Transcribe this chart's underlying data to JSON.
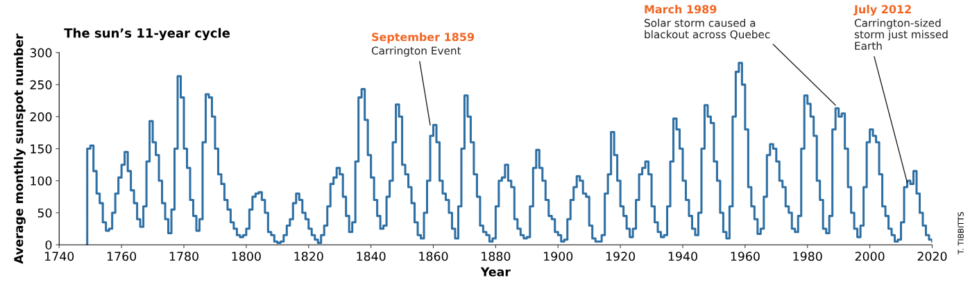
{
  "chart_data": {
    "type": "step",
    "title": "The sun’s 11-year cycle",
    "xlabel": "Year",
    "ylabel": "Average monthly sunspot number",
    "x": [
      1748.9,
      1749,
      1750,
      1751,
      1752,
      1753,
      1754,
      1755,
      1756,
      1757,
      1758,
      1759,
      1760,
      1761,
      1762,
      1763,
      1764,
      1765,
      1766,
      1767,
      1768,
      1769,
      1770,
      1771,
      1772,
      1773,
      1774,
      1775,
      1776,
      1777,
      1778,
      1779,
      1780,
      1781,
      1782,
      1783,
      1784,
      1785,
      1786,
      1787,
      1788,
      1789,
      1790,
      1791,
      1792,
      1793,
      1794,
      1795,
      1796,
      1797,
      1798,
      1799,
      1800,
      1801,
      1802,
      1803,
      1804,
      1805,
      1806,
      1807,
      1808,
      1809,
      1810,
      1811,
      1812,
      1813,
      1814,
      1815,
      1816,
      1817,
      1818,
      1819,
      1820,
      1821,
      1822,
      1823,
      1824,
      1825,
      1826,
      1827,
      1828,
      1829,
      1830,
      1831,
      1832,
      1833,
      1834,
      1835,
      1836,
      1837,
      1838,
      1839,
      1840,
      1841,
      1842,
      1843,
      1844,
      1845,
      1846,
      1847,
      1848,
      1849,
      1850,
      1851,
      1852,
      1853,
      1854,
      1855,
      1856,
      1857,
      1858,
      1859,
      1860,
      1861,
      1862,
      1863,
      1864,
      1865,
      1866,
      1867,
      1868,
      1869,
      1870,
      1871,
      1872,
      1873,
      1874,
      1875,
      1876,
      1877,
      1878,
      1879,
      1880,
      1881,
      1882,
      1883,
      1884,
      1885,
      1886,
      1887,
      1888,
      1889,
      1890,
      1891,
      1892,
      1893,
      1894,
      1895,
      1896,
      1897,
      1898,
      1899,
      1900,
      1901,
      1902,
      1903,
      1904,
      1905,
      1906,
      1907,
      1908,
      1909,
      1910,
      1911,
      1912,
      1913,
      1914,
      1915,
      1916,
      1917,
      1918,
      1919,
      1920,
      1921,
      1922,
      1923,
      1924,
      1925,
      1926,
      1927,
      1928,
      1929,
      1930,
      1931,
      1932,
      1933,
      1934,
      1935,
      1936,
      1937,
      1938,
      1939,
      1940,
      1941,
      1942,
      1943,
      1944,
      1945,
      1946,
      1947,
      1948,
      1949,
      1950,
      1951,
      1952,
      1953,
      1954,
      1955,
      1956,
      1957,
      1958,
      1959,
      1960,
      1961,
      1962,
      1963,
      1964,
      1965,
      1966,
      1967,
      1968,
      1969,
      1970,
      1971,
      1972,
      1973,
      1974,
      1975,
      1976,
      1977,
      1978,
      1979,
      1980,
      1981,
      1982,
      1983,
      1984,
      1985,
      1986,
      1987,
      1988,
      1989,
      1990,
      1991,
      1992,
      1993,
      1994,
      1995,
      1996,
      1997,
      1998,
      1999,
      2000,
      2001,
      2002,
      2003,
      2004,
      2005,
      2006,
      2007,
      2008,
      2009,
      2010,
      2011,
      2012,
      2013,
      2014,
      2015,
      2016,
      2017,
      2018,
      2019,
      2020
    ],
    "series": [
      {
        "color": "#2e6fa3",
        "values": [
          0,
          150,
          155,
          115,
          80,
          65,
          35,
          22,
          25,
          50,
          80,
          105,
          125,
          145,
          115,
          85,
          65,
          40,
          28,
          60,
          130,
          193,
          160,
          140,
          100,
          65,
          40,
          18,
          55,
          150,
          263,
          230,
          150,
          120,
          70,
          45,
          22,
          40,
          160,
          235,
          230,
          200,
          150,
          110,
          95,
          70,
          55,
          35,
          25,
          15,
          12,
          15,
          25,
          55,
          75,
          80,
          82,
          70,
          50,
          20,
          15,
          5,
          3,
          5,
          15,
          30,
          40,
          65,
          80,
          70,
          50,
          40,
          25,
          15,
          8,
          3,
          15,
          30,
          60,
          95,
          105,
          120,
          110,
          75,
          45,
          20,
          35,
          130,
          230,
          243,
          195,
          140,
          105,
          70,
          45,
          25,
          30,
          75,
          100,
          160,
          219,
          200,
          125,
          110,
          90,
          65,
          35,
          15,
          10,
          50,
          100,
          170,
          187,
          160,
          100,
          80,
          70,
          50,
          25,
          10,
          60,
          150,
          233,
          200,
          160,
          110,
          75,
          30,
          20,
          15,
          5,
          10,
          60,
          100,
          105,
          125,
          100,
          90,
          40,
          25,
          15,
          10,
          12,
          60,
          120,
          148,
          120,
          100,
          70,
          45,
          40,
          20,
          15,
          5,
          8,
          40,
          70,
          90,
          107,
          100,
          80,
          75,
          30,
          10,
          5,
          5,
          15,
          80,
          110,
          176,
          140,
          100,
          60,
          45,
          25,
          12,
          25,
          70,
          110,
          120,
          130,
          110,
          60,
          35,
          20,
          12,
          15,
          60,
          130,
          197,
          180,
          150,
          100,
          70,
          45,
          25,
          15,
          50,
          150,
          218,
          200,
          190,
          130,
          100,
          50,
          20,
          10,
          60,
          200,
          270,
          284,
          250,
          180,
          90,
          60,
          40,
          17,
          25,
          75,
          140,
          157,
          150,
          130,
          100,
          90,
          60,
          50,
          25,
          20,
          45,
          150,
          233,
          220,
          200,
          170,
          100,
          70,
          25,
          18,
          45,
          180,
          213,
          200,
          205,
          150,
          90,
          50,
          25,
          12,
          30,
          90,
          160,
          180,
          170,
          160,
          110,
          60,
          45,
          25,
          15,
          5,
          8,
          35,
          90,
          100,
          95,
          115,
          80,
          50,
          30,
          15,
          8,
          5
        ]
      }
    ],
    "xlim": [
      1740,
      2020
    ],
    "xticks": [
      1740,
      1760,
      1780,
      1800,
      1820,
      1840,
      1860,
      1880,
      1900,
      1920,
      1940,
      1960,
      1980,
      2000,
      2020
    ],
    "ylim": [
      0,
      300
    ],
    "yticks": [
      0,
      50,
      100,
      150,
      200,
      250,
      300
    ],
    "grid": false,
    "legend": false,
    "annotations": [
      "September 1859",
      {
        "text": "Carrington Event",
        "x": 1859,
        "y": 187
      },
      "March 1989",
      {
        "text": "Solar storm caused a\nblackout across Quebec",
        "x": 1989,
        "y": 218
      },
      "July 2012",
      {
        "text": "Carrington-sized\nstorm just missed\nEarth",
        "x": 2012,
        "y": 97
      },
      "T. TIBBITTS"
    ]
  }
}
